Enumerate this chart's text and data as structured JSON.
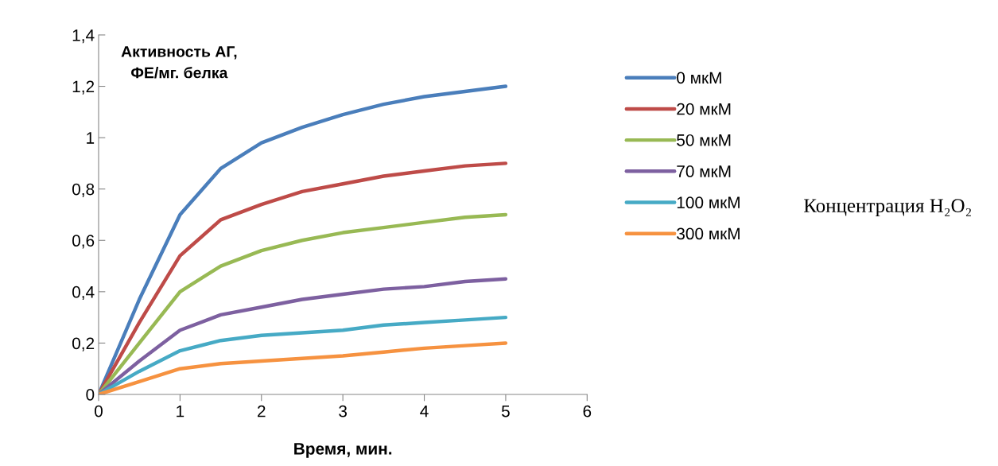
{
  "chart_data": {
    "type": "line",
    "ylabel": "Активность АГ,\nФЕ/мг. белка",
    "xlabel": "Время, мин.",
    "x": [
      0,
      0.5,
      1,
      1.5,
      2,
      2.5,
      3,
      3.5,
      4,
      4.5,
      5
    ],
    "series": [
      {
        "name": "0 мкМ",
        "color": "#4a7ebb",
        "values": [
          0,
          0.37,
          0.7,
          0.88,
          0.98,
          1.04,
          1.09,
          1.13,
          1.16,
          1.18,
          1.2
        ]
      },
      {
        "name": "20 мкМ",
        "color": "#be4b48",
        "values": [
          0,
          0.28,
          0.54,
          0.68,
          0.74,
          0.79,
          0.82,
          0.85,
          0.87,
          0.89,
          0.9
        ]
      },
      {
        "name": "50 мкМ",
        "color": "#98b954",
        "values": [
          0,
          0.2,
          0.4,
          0.5,
          0.56,
          0.6,
          0.63,
          0.65,
          0.67,
          0.69,
          0.7
        ]
      },
      {
        "name": "70 мкМ",
        "color": "#7d60a0",
        "values": [
          0,
          0.13,
          0.25,
          0.31,
          0.34,
          0.37,
          0.39,
          0.41,
          0.42,
          0.44,
          0.45
        ]
      },
      {
        "name": "100 мкМ",
        "color": "#46aac5",
        "values": [
          0,
          0.09,
          0.17,
          0.21,
          0.23,
          0.24,
          0.25,
          0.27,
          0.28,
          0.29,
          0.3
        ]
      },
      {
        "name": "300 мкМ",
        "color": "#f69240",
        "values": [
          0,
          0.05,
          0.1,
          0.12,
          0.13,
          0.14,
          0.15,
          0.165,
          0.18,
          0.19,
          0.2
        ]
      }
    ],
    "xlim": [
      0,
      6
    ],
    "xticks": [
      0,
      1,
      2,
      3,
      4,
      5,
      6
    ],
    "ylim": [
      0,
      1.4
    ],
    "yticks": [
      0,
      {
        "value": 0.2,
        "label": "0,2"
      },
      {
        "value": 0.4,
        "label": "0,4"
      },
      {
        "value": 0.6,
        "label": "0,6"
      },
      {
        "value": 0.8,
        "label": "0,8"
      },
      1,
      {
        "value": 1.2,
        "label": "1,2"
      },
      {
        "value": 1.4,
        "label": "1,4"
      }
    ],
    "legend": "right",
    "grid": false,
    "marker": "none",
    "line_style": "solid",
    "annotations": [
      "Концентрация H₂O₂"
    ]
  }
}
